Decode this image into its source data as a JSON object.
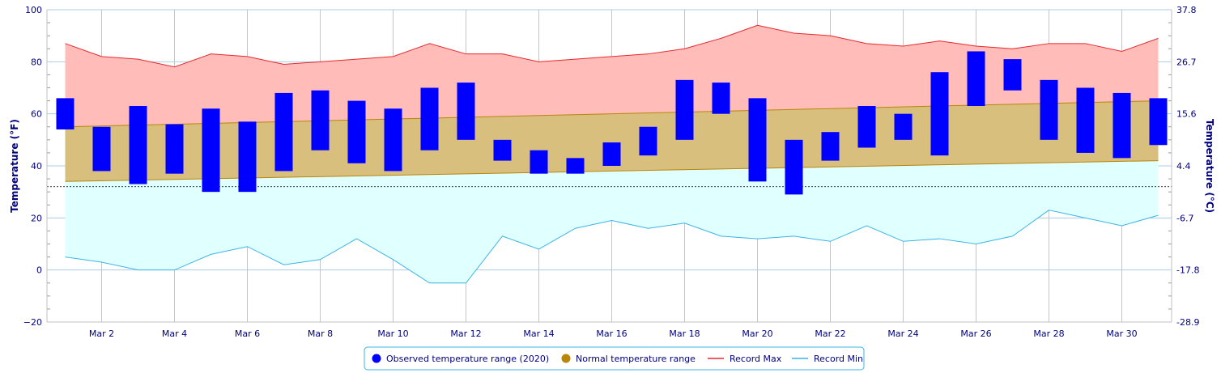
{
  "chart_data": {
    "type": "bar",
    "title": "",
    "ylabel_left": "Temperature (°F)",
    "ylabel_right": "Temperature (°C)",
    "ylim": [
      -20,
      100
    ],
    "yticks_left": [
      "100",
      "80",
      "60",
      "40",
      "20",
      "0",
      "−20"
    ],
    "yticks_right": [
      "37.8",
      "26.7",
      "15.6",
      "4.4",
      "-6.7",
      "-17.8",
      "-28.9"
    ],
    "grid": true,
    "freezing_line": 32,
    "xtick_labels": [
      "Mar 2",
      "Mar 4",
      "Mar 6",
      "Mar 8",
      "Mar 10",
      "Mar 12",
      "Mar 14",
      "Mar 16",
      "Mar 18",
      "Mar 20",
      "Mar 22",
      "Mar 24",
      "Mar 26",
      "Mar 28",
      "Mar 30"
    ],
    "days": [
      1,
      2,
      3,
      4,
      5,
      6,
      7,
      8,
      9,
      10,
      11,
      12,
      13,
      14,
      15,
      16,
      17,
      18,
      19,
      20,
      21,
      22,
      23,
      24,
      25,
      26,
      27,
      28,
      29,
      30,
      31
    ],
    "observed_low": [
      54,
      38,
      33,
      37,
      30,
      30,
      38,
      46,
      41,
      38,
      46,
      50,
      42,
      37,
      37,
      40,
      44,
      50,
      60,
      34,
      29,
      42,
      47,
      50,
      44,
      63,
      69,
      50,
      45,
      43,
      48
    ],
    "observed_high": [
      66,
      55,
      63,
      56,
      62,
      57,
      68,
      69,
      65,
      62,
      70,
      72,
      50,
      46,
      43,
      49,
      55,
      73,
      72,
      66,
      50,
      53,
      63,
      60,
      76,
      84,
      81,
      73,
      70,
      68,
      66
    ],
    "normal_low_start": 34,
    "normal_low_end": 42,
    "normal_high_start": 55,
    "normal_high_end": 65,
    "record_max": [
      87,
      82,
      81,
      78,
      83,
      82,
      79,
      80,
      81,
      82,
      87,
      83,
      83,
      80,
      81,
      82,
      83,
      85,
      89,
      94,
      91,
      90,
      87,
      86,
      88,
      86,
      85,
      87,
      87,
      84,
      89
    ],
    "record_min": [
      5,
      3,
      0,
      0,
      6,
      9,
      2,
      4,
      12,
      4,
      -5,
      -5,
      13,
      8,
      16,
      19,
      16,
      18,
      13,
      12,
      13,
      11,
      17,
      11,
      12,
      10,
      13,
      23,
      20,
      17,
      21
    ],
    "colors": {
      "observed": "#0000ff",
      "normal_fill": "#d8bf7e",
      "normal_line": "#b8860b",
      "normal_marker": "#b8860b",
      "record_max_fill": "#ffbcb8",
      "record_max_line": "#e8282c",
      "record_min_fill": "#e0ffff",
      "record_min_line": "#3cb4e6",
      "grid": "#a9cde6",
      "axis": "#000080"
    },
    "legend": {
      "position": "bottom-center",
      "entries": [
        "Observed temperature range (2020)",
        "Normal temperature range",
        "Record Max",
        "Record Min"
      ]
    }
  }
}
